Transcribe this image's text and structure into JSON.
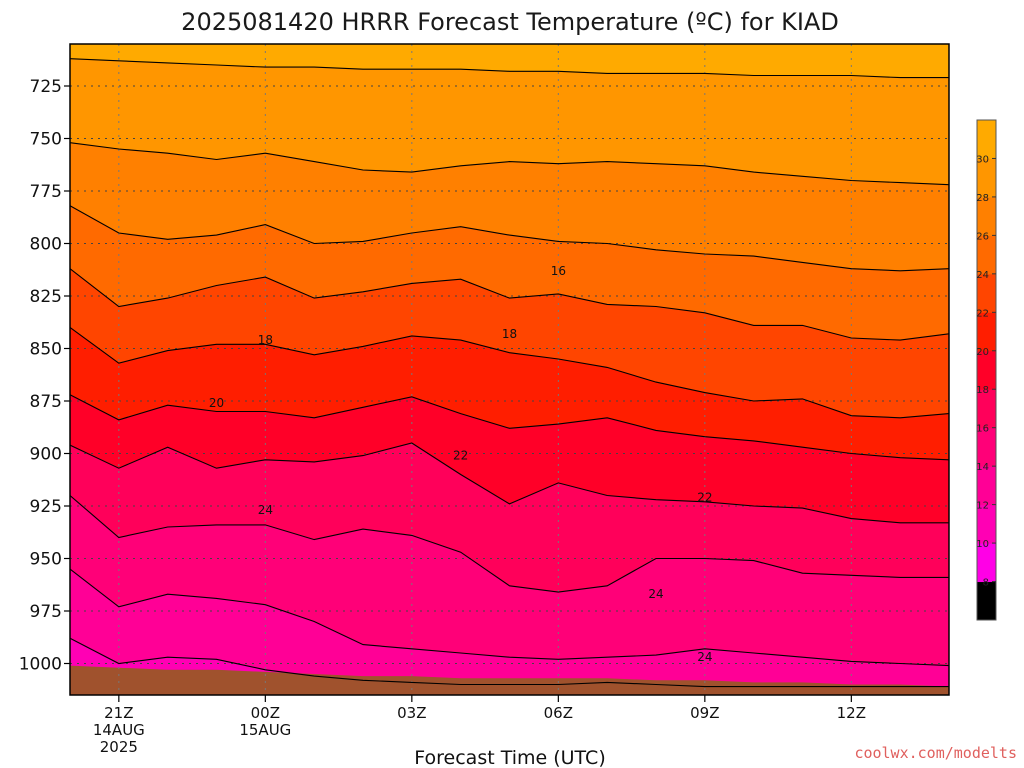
{
  "chart_data": {
    "type": "contour",
    "title": "2025081420 HRRR Forecast Temperature (ºC) for KIAD",
    "xlabel": "Forecast Time (UTC)",
    "ylabel": "",
    "credit": "coolwx.com/modelts",
    "y_axis": {
      "quantity": "pressure (hPa)",
      "reversed": true,
      "ylim": [
        1015,
        705
      ],
      "ticks": [
        "725",
        "750",
        "775",
        "800",
        "825",
        "850",
        "875",
        "900",
        "925",
        "950",
        "975",
        "1000"
      ]
    },
    "x_axis": {
      "xlim": [
        -1,
        17
      ],
      "ticks": [
        {
          "hour": 0,
          "lines": [
            "21Z",
            "14AUG",
            "2025"
          ]
        },
        {
          "hour": 3,
          "lines": [
            "00Z",
            "15AUG"
          ]
        },
        {
          "hour": 6,
          "lines": [
            "03Z"
          ]
        },
        {
          "hour": 9,
          "lines": [
            "06Z"
          ]
        },
        {
          "hour": 12,
          "lines": [
            "09Z"
          ]
        },
        {
          "hour": 15,
          "lines": [
            "12Z"
          ]
        }
      ]
    },
    "grid": true,
    "levels": [
      6,
      8,
      10,
      12,
      14,
      16,
      18,
      20,
      22,
      24,
      26,
      28,
      30,
      32
    ],
    "colorbar_ticks": [
      "8",
      "10",
      "12",
      "14",
      "16",
      "18",
      "20",
      "22",
      "24",
      "26",
      "28",
      "30"
    ],
    "colors": [
      "#ffc300",
      "#ffaa00",
      "#ff9600",
      "#ff8000",
      "#ff6a00",
      "#ff4500",
      "#ff1e00",
      "#ff0028",
      "#ff005a",
      "#ff0078",
      "#ff0096",
      "#ff00b4",
      "#ff00e6"
    ],
    "ground_color": "#a0522d",
    "hours": [
      -1,
      0,
      1,
      2,
      3,
      4,
      5,
      6,
      7,
      8,
      9,
      10,
      11,
      12,
      13,
      14,
      15,
      16,
      17
    ],
    "isotherms": [
      {
        "t": 12,
        "p": [
          712,
          713,
          714,
          715,
          716,
          716,
          717,
          717,
          717,
          718,
          718,
          719,
          719,
          719,
          720,
          720,
          720,
          721,
          721
        ]
      },
      {
        "t": 14,
        "p": [
          752,
          755,
          757,
          760,
          757,
          761,
          765,
          766,
          763,
          761,
          762,
          761,
          762,
          763,
          766,
          768,
          770,
          771,
          772
        ]
      },
      {
        "t": 16,
        "p": [
          782,
          795,
          798,
          796,
          791,
          800,
          799,
          795,
          792,
          796,
          799,
          800,
          803,
          805,
          806,
          809,
          812,
          813,
          812
        ]
      },
      {
        "t": 18,
        "p": [
          812,
          830,
          826,
          820,
          816,
          826,
          823,
          819,
          817,
          826,
          824,
          829,
          830,
          833,
          839,
          839,
          845,
          846,
          843
        ]
      },
      {
        "t": 20,
        "p": [
          840,
          857,
          851,
          848,
          848,
          853,
          849,
          844,
          846,
          852,
          855,
          859,
          866,
          871,
          875,
          874,
          882,
          883,
          881
        ]
      },
      {
        "t": 22,
        "p": [
          872,
          884,
          877,
          880,
          880,
          883,
          878,
          873,
          881,
          888,
          886,
          883,
          889,
          892,
          894,
          897,
          900,
          902,
          903
        ]
      },
      {
        "t": 24,
        "p": [
          896,
          907,
          897,
          907,
          903,
          904,
          901,
          895,
          910,
          924,
          914,
          920,
          922,
          923,
          925,
          926,
          931,
          933,
          933
        ]
      },
      {
        "t": 26,
        "p": [
          920,
          940,
          935,
          934,
          934,
          941,
          936,
          939,
          947,
          963,
          966,
          963,
          950,
          950,
          951,
          957,
          958,
          959,
          959
        ]
      },
      {
        "t": 28,
        "p": [
          955,
          973,
          967,
          969,
          972,
          980,
          991,
          993,
          995,
          997,
          998,
          997,
          996,
          993,
          995,
          997,
          999,
          1000,
          1001
        ]
      },
      {
        "t": 30,
        "p": [
          988,
          1000,
          997,
          998,
          1003,
          1006,
          1008,
          1009,
          1010,
          1010,
          1010,
          1009,
          1010,
          1011,
          1011,
          1011,
          1011,
          1011,
          1011
        ]
      }
    ],
    "surface_p": [
      1001,
      1002,
      1003,
      1003,
      1004,
      1005,
      1006,
      1006,
      1007,
      1007,
      1007,
      1007,
      1008,
      1008,
      1009,
      1009,
      1010,
      1010,
      1011
    ],
    "contour_labels": [
      {
        "text": "16",
        "hour": 9,
        "p": 813
      },
      {
        "text": "18",
        "hour": 3,
        "p": 846
      },
      {
        "text": "18",
        "hour": 8,
        "p": 843
      },
      {
        "text": "20",
        "hour": 2,
        "p": 876
      },
      {
        "text": "22",
        "hour": 7,
        "p": 901
      },
      {
        "text": "22",
        "hour": 12,
        "p": 921
      },
      {
        "text": "24",
        "hour": 3,
        "p": 927
      },
      {
        "text": "24",
        "hour": 11,
        "p": 967
      },
      {
        "text": "24",
        "hour": 12,
        "p": 997
      }
    ]
  }
}
